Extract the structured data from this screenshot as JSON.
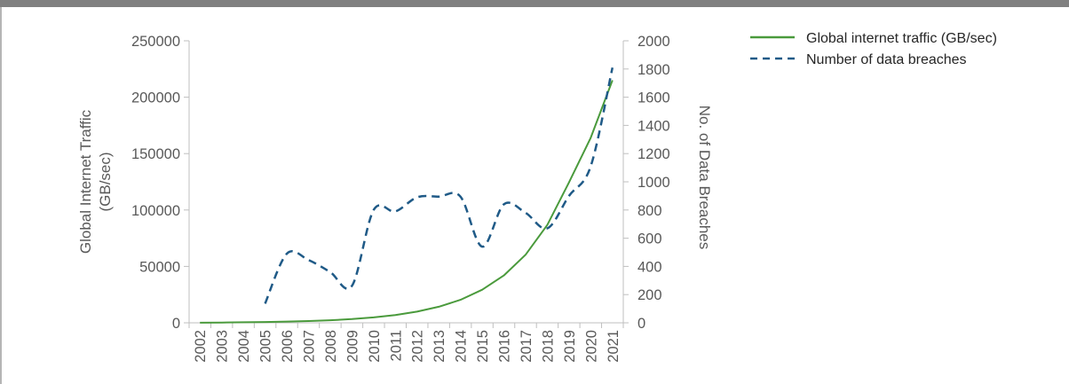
{
  "chart_data": {
    "type": "line",
    "x_categories": [
      "2002",
      "2003",
      "2004",
      "2005",
      "2006",
      "2007",
      "2008",
      "2009",
      "2010",
      "2011",
      "2012",
      "2013",
      "2014",
      "2015",
      "2016",
      "2017",
      "2018",
      "2019",
      "2020",
      "2021"
    ],
    "y_left": {
      "label_line1": "Global Internet Traffic",
      "label_line2": "(GB/sec)",
      "ticks": [
        "0",
        "50000",
        "100000",
        "150000",
        "200000",
        "250000"
      ],
      "range": [
        0,
        250000
      ]
    },
    "y_right": {
      "label": "No. of Data Breaches",
      "ticks": [
        "0",
        "200",
        "400",
        "600",
        "800",
        "1000",
        "1200",
        "1400",
        "1600",
        "1800",
        "2000"
      ],
      "range": [
        0,
        2000
      ]
    },
    "series": [
      {
        "name": "Global internet traffic (GB/sec)",
        "axis": "left",
        "style": "solid",
        "color": "#4a9a3c",
        "x": [
          "2002",
          "2003",
          "2004",
          "2005",
          "2006",
          "2007",
          "2008",
          "2009",
          "2010",
          "2011",
          "2012",
          "2013",
          "2014",
          "2015",
          "2016",
          "2017",
          "2018",
          "2019",
          "2020",
          "2021"
        ],
        "values": [
          100,
          250,
          450,
          700,
          1100,
          1600,
          2300,
          3300,
          4800,
          6900,
          9900,
          14200,
          20400,
          29300,
          42000,
          60400,
          86700,
          124500,
          164000,
          215000
        ]
      },
      {
        "name": "Number of data breaches",
        "axis": "right",
        "style": "dashed",
        "color": "#1f5a87",
        "x": [
          "2005",
          "2006",
          "2007",
          "2008",
          "2009",
          "2010",
          "2011",
          "2012",
          "2013",
          "2014",
          "2015",
          "2016",
          "2017",
          "2018",
          "2019",
          "2020",
          "2021"
        ],
        "values": [
          136,
          490,
          445,
          360,
          262,
          800,
          790,
          890,
          895,
          895,
          540,
          840,
          780,
          670,
          900,
          1110,
          1810
        ]
      }
    ],
    "legend_position": "top-right",
    "grid": false
  }
}
